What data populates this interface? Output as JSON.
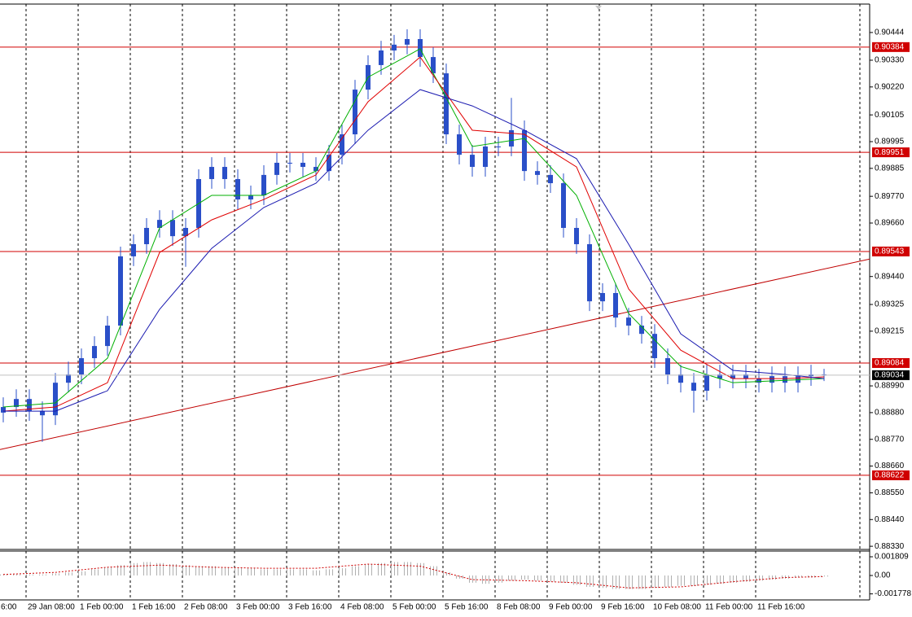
{
  "chart_data": {
    "type": "candlestick",
    "ylim": [
      0.88317,
      0.90561
    ],
    "yticks": [
      0.90444,
      {
        "value": 0.9033,
        "label": "0.90330"
      },
      {
        "value": 0.9022,
        "label": "0.90220"
      },
      0.90105,
      0.89995,
      0.89885,
      {
        "value": 0.8977,
        "label": "0.89770"
      },
      {
        "value": 0.8966,
        "label": "0.89660"
      },
      {
        "value": 0.8944,
        "label": "0.89440"
      },
      0.89325,
      0.89215,
      {
        "value": 0.8899,
        "label": "0.88990"
      },
      {
        "value": 0.8888,
        "label": "0.88880"
      },
      {
        "value": 0.8877,
        "label": "0.88770"
      },
      {
        "value": 0.8866,
        "label": "0.88660"
      },
      {
        "value": 0.8855,
        "label": "0.88550"
      },
      {
        "value": 0.8844,
        "label": "0.88440"
      },
      {
        "value": 0.8833,
        "label": "0.88330"
      }
    ],
    "x_labels": [
      "6:00",
      "29 Jan 08:00",
      "1 Feb 00:00",
      "1 Feb 16:00",
      "2 Feb 08:00",
      "3 Feb 00:00",
      "3 Feb 16:00",
      "4 Feb 08:00",
      "5 Feb 00:00",
      "5 Feb 16:00",
      "8 Feb 08:00",
      "9 Feb 00:00",
      "9 Feb 16:00",
      "10 Feb 08:00",
      "11 Feb 00:00",
      "11 Feb 16:00"
    ],
    "candle_color": "#2a4fc8",
    "candles": {
      "open": [
        0.8888,
        0.88903,
        0.88936,
        0.88886,
        0.88869,
        0.89003,
        0.89037,
        0.89104,
        0.89154,
        0.89238,
        0.89523,
        0.89573,
        0.8964,
        0.89673,
        0.89606,
        0.8964,
        0.89841,
        0.89891,
        0.89841,
        0.89757,
        0.89774,
        0.89858,
        0.89908,
        0.89908,
        0.89891,
        0.89874,
        0.89941,
        0.90025,
        0.90209,
        0.9031,
        0.9037,
        0.90394,
        0.90417,
        0.90343,
        0.90276,
        0.90025,
        0.89941,
        0.89891,
        0.89975,
        0.89975,
        0.90042,
        0.89874,
        0.89858,
        0.89824,
        0.8964,
        0.89573,
        0.89338,
        0.89372,
        0.89271,
        0.89238,
        0.89204,
        0.89104,
        0.89037,
        0.89003,
        0.8897,
        0.89037,
        0.8902,
        0.89037,
        0.8902,
        0.89003,
        0.8903,
        0.89003,
        0.8903,
        0.89037
      ],
      "high": [
        0.88943,
        0.88976,
        0.88976,
        0.88926,
        0.89043,
        0.8909,
        0.89144,
        0.89194,
        0.89278,
        0.89563,
        0.89613,
        0.8968,
        0.89713,
        0.89713,
        0.8968,
        0.89881,
        0.89931,
        0.89931,
        0.89881,
        0.89814,
        0.89898,
        0.89948,
        0.89948,
        0.89948,
        0.89931,
        0.89981,
        0.90065,
        0.90249,
        0.9035,
        0.9041,
        0.90434,
        0.90457,
        0.90457,
        0.90383,
        0.90316,
        0.90065,
        0.89981,
        0.90015,
        0.90015,
        0.90175,
        0.90082,
        0.89914,
        0.89898,
        0.89864,
        0.8968,
        0.89613,
        0.89412,
        0.89412,
        0.89311,
        0.89278,
        0.89244,
        0.89144,
        0.89077,
        0.89043,
        0.89077,
        0.89077,
        0.89077,
        0.89077,
        0.8906,
        0.8907,
        0.8907,
        0.8907,
        0.89077,
        0.8906
      ],
      "low": [
        0.8884,
        0.88863,
        0.88846,
        0.8876,
        0.88829,
        0.88963,
        0.88997,
        0.89064,
        0.89114,
        0.89198,
        0.89483,
        0.89533,
        0.896,
        0.89566,
        0.8948,
        0.896,
        0.89801,
        0.89801,
        0.89717,
        0.89717,
        0.89734,
        0.89818,
        0.89868,
        0.89851,
        0.89834,
        0.89834,
        0.89901,
        0.89985,
        0.90169,
        0.9027,
        0.9033,
        0.90354,
        0.90303,
        0.90236,
        0.89985,
        0.89901,
        0.89851,
        0.89851,
        0.89935,
        0.89935,
        0.89834,
        0.89818,
        0.89784,
        0.896,
        0.89533,
        0.89298,
        0.89298,
        0.89231,
        0.89198,
        0.89164,
        0.89064,
        0.88997,
        0.88963,
        0.8888,
        0.8893,
        0.8898,
        0.8898,
        0.8898,
        0.88963,
        0.88963,
        0.88963,
        0.88963,
        0.8899,
        0.8901
      ],
      "close": [
        0.88903,
        0.88936,
        0.88886,
        0.88869,
        0.89003,
        0.89037,
        0.89104,
        0.89154,
        0.89238,
        0.89523,
        0.89573,
        0.8964,
        0.89673,
        0.89606,
        0.8964,
        0.89841,
        0.89891,
        0.89841,
        0.89757,
        0.89774,
        0.89858,
        0.89908,
        0.89908,
        0.89891,
        0.89874,
        0.89941,
        0.90025,
        0.90209,
        0.9031,
        0.9037,
        0.90394,
        0.90417,
        0.90343,
        0.90276,
        0.90025,
        0.89941,
        0.89891,
        0.89975,
        0.89975,
        0.90042,
        0.89874,
        0.89858,
        0.89824,
        0.8964,
        0.89573,
        0.89338,
        0.89372,
        0.89271,
        0.89238,
        0.89204,
        0.89104,
        0.89037,
        0.89003,
        0.8897,
        0.89037,
        0.8902,
        0.89037,
        0.8902,
        0.89003,
        0.8903,
        0.89003,
        0.8903,
        0.89037,
        0.89034
      ]
    },
    "series": [
      {
        "color": "#00b000",
        "x": [
          0,
          4,
          8,
          12,
          16,
          20,
          24,
          28,
          32,
          36,
          40,
          44,
          48,
          52,
          56,
          60,
          63
        ],
        "values": [
          0.88903,
          0.8892,
          0.89104,
          0.8964,
          0.89774,
          0.89774,
          0.89874,
          0.9026,
          0.90377,
          0.89975,
          0.90008,
          0.89774,
          0.89288,
          0.8907,
          0.89003,
          0.89013,
          0.8902
        ]
      },
      {
        "color": "#e00000",
        "x": [
          0,
          4,
          8,
          12,
          16,
          20,
          24,
          28,
          32,
          36,
          40,
          44,
          48,
          52,
          56,
          60,
          63
        ],
        "values": [
          0.88886,
          0.88903,
          0.89003,
          0.89539,
          0.89673,
          0.89757,
          0.89858,
          0.90159,
          0.90343,
          0.90042,
          0.90025,
          0.89891,
          0.89389,
          0.89137,
          0.8902,
          0.8902,
          0.89027
        ]
      },
      {
        "color": "#1a1ab0",
        "x": [
          0,
          4,
          8,
          12,
          16,
          20,
          24,
          28,
          32,
          36,
          40,
          44,
          48,
          52,
          56,
          60,
          63
        ],
        "values": [
          0.88886,
          0.88886,
          0.8897,
          0.89305,
          0.89556,
          0.89724,
          0.89824,
          0.90042,
          0.90209,
          0.90142,
          0.90042,
          0.89925,
          0.89573,
          0.89204,
          0.89054,
          0.89037,
          0.8902
        ]
      }
    ],
    "levels": {
      "color": "#d00000",
      "values": [
        0.90384,
        0.89951,
        0.89543,
        0.89084,
        0.88622
      ]
    },
    "current_price": 0.89034,
    "trendline": {
      "color": "#c00000",
      "x": [
        -0.25,
        66.5
      ],
      "values": [
        0.88728,
        0.89512
      ]
    },
    "oscillator": {
      "ylim": [
        -0.00236,
        0.00236
      ],
      "yticks": [
        0.001809,
        {
          "value": 0,
          "label": "0.00"
        },
        -0.001778
      ],
      "histogram": {
        "color": "#b8b8b8",
        "values": [
          0.0001,
          0.0001,
          0.0001,
          0.0001,
          0.0002,
          0.0003,
          0.0004,
          0.0006,
          0.0008,
          0.001,
          0.0012,
          0.0013,
          0.0012,
          0.0011,
          0.001,
          0.0009,
          0.0009,
          0.0008,
          0.0007,
          0.0007,
          0.0006,
          0.0006,
          0.0006,
          0.0006,
          0.0005,
          0.0006,
          0.0007,
          0.0009,
          0.0011,
          0.0012,
          0.0013,
          0.0013,
          0.0012,
          0.0009,
          0.0003,
          -0.0003,
          -0.0007,
          -0.0008,
          -0.0007,
          -0.0005,
          -0.0004,
          -0.0005,
          -0.0006,
          -0.0007,
          -0.0009,
          -0.0011,
          -0.0012,
          -0.0013,
          -0.0013,
          -0.0013,
          -0.0012,
          -0.0011,
          -0.001,
          -0.001,
          -0.0009,
          -0.0008,
          -0.0007,
          -0.0006,
          -0.0005,
          -0.0004,
          -0.0003,
          -0.0002,
          -0.0002,
          -0.0001
        ]
      },
      "signal": {
        "color": "#d00000",
        "x": [
          0,
          4,
          8,
          12,
          16,
          20,
          24,
          28,
          32,
          36,
          40,
          44,
          48,
          52,
          56,
          60,
          63
        ],
        "values": [
          0.0001,
          0.0003,
          0.0008,
          0.001,
          0.0008,
          0.0007,
          0.0007,
          0.0011,
          0.0009,
          -0.0004,
          -0.0005,
          -0.0007,
          -0.0012,
          -0.0011,
          -0.0006,
          -0.0002,
          -0.0001
        ]
      }
    }
  }
}
